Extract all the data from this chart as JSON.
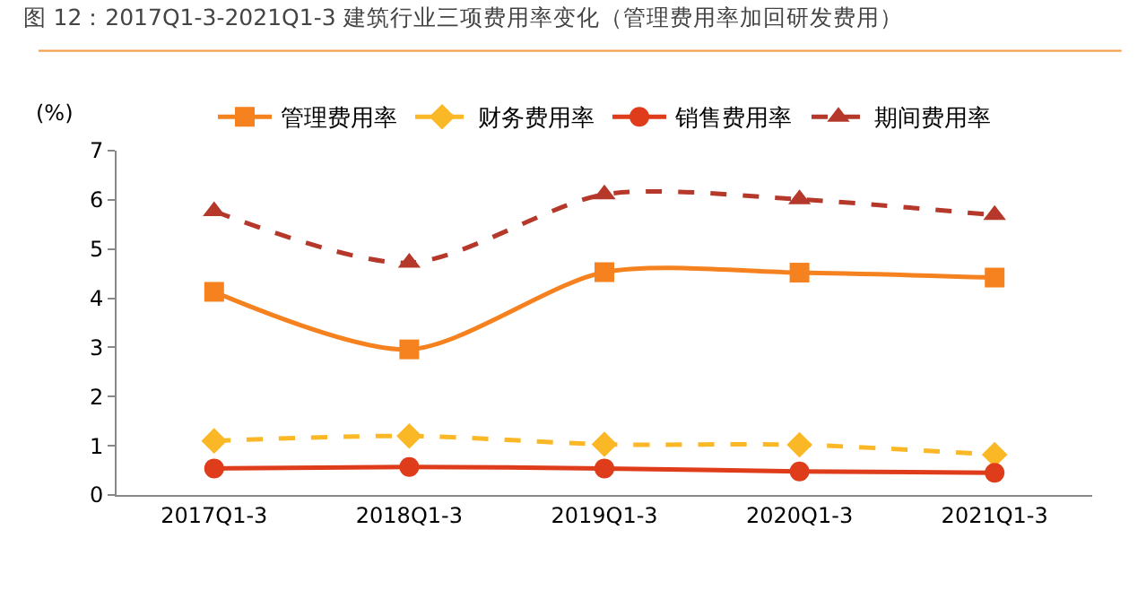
{
  "chart_data": {
    "type": "line",
    "title": "图 12：2017Q1-3-2021Q1-3 建筑行业三项费用率变化（管理费用率加回研发费用）",
    "ylabel": "(%)",
    "categories": [
      "2017Q1-3",
      "2018Q1-3",
      "2019Q1-3",
      "2020Q1-3",
      "2021Q1-3"
    ],
    "series": [
      {
        "name": "管理费用率",
        "color": "#f5821f",
        "marker": "square",
        "line_style": "solid",
        "values": [
          4.13,
          2.96,
          4.53,
          4.52,
          4.42
        ]
      },
      {
        "name": "财务费用率",
        "color": "#fbb826",
        "marker": "diamond",
        "line_style": "dashed",
        "values": [
          1.1,
          1.2,
          1.03,
          1.02,
          0.82
        ]
      },
      {
        "name": "销售费用率",
        "color": "#de3c1a",
        "marker": "circle",
        "line_style": "solid",
        "values": [
          0.54,
          0.57,
          0.54,
          0.48,
          0.45
        ]
      },
      {
        "name": "期间费用率",
        "color": "#b5382a",
        "marker": "triangle",
        "line_style": "dashed",
        "values": [
          5.77,
          4.72,
          6.11,
          6.01,
          5.69
        ]
      }
    ],
    "ylim": [
      0,
      7
    ],
    "yticks": [
      0,
      1,
      2,
      3,
      4,
      5,
      6,
      7
    ],
    "legend": "top"
  }
}
